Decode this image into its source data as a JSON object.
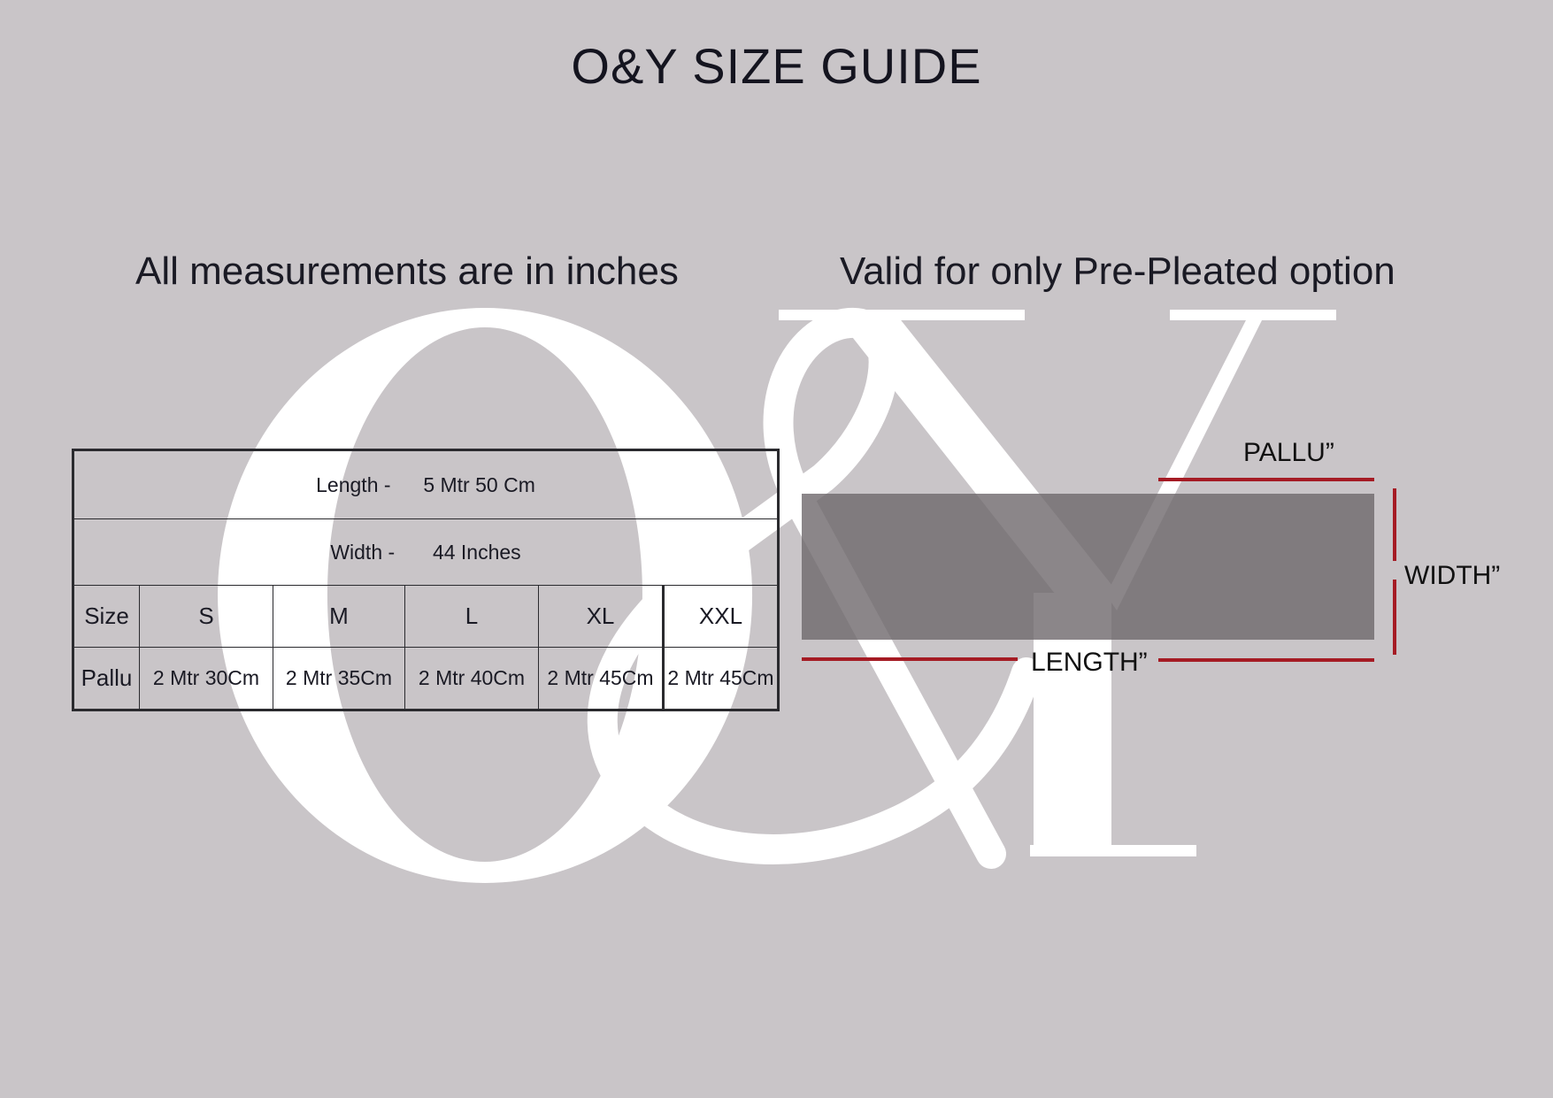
{
  "header": {
    "title": "O&Y SIZE GUIDE"
  },
  "notes": {
    "left": "All measurements are in inches",
    "right": "Valid for only Pre-Pleated option"
  },
  "watermark": "O&Y",
  "size_table": {
    "length_label": "Length -",
    "length_value": "5 Mtr 50 Cm",
    "width_label": "Width -",
    "width_value": "44 Inches",
    "size_header": "Size",
    "sizes": [
      "S",
      "M",
      "L",
      "XL",
      "XXL"
    ],
    "pallu_header": "Pallu",
    "pallu": [
      "2 Mtr 30Cm",
      "2 Mtr 35Cm",
      "2 Mtr 40Cm",
      "2 Mtr 45Cm",
      "2 Mtr 45Cm"
    ]
  },
  "diagram": {
    "pallu_label": "PALLU”",
    "width_label": "WIDTH”",
    "length_label": "LENGTH”",
    "fabric_color": "#7f7a7c",
    "marker_color": "#a51b24"
  }
}
